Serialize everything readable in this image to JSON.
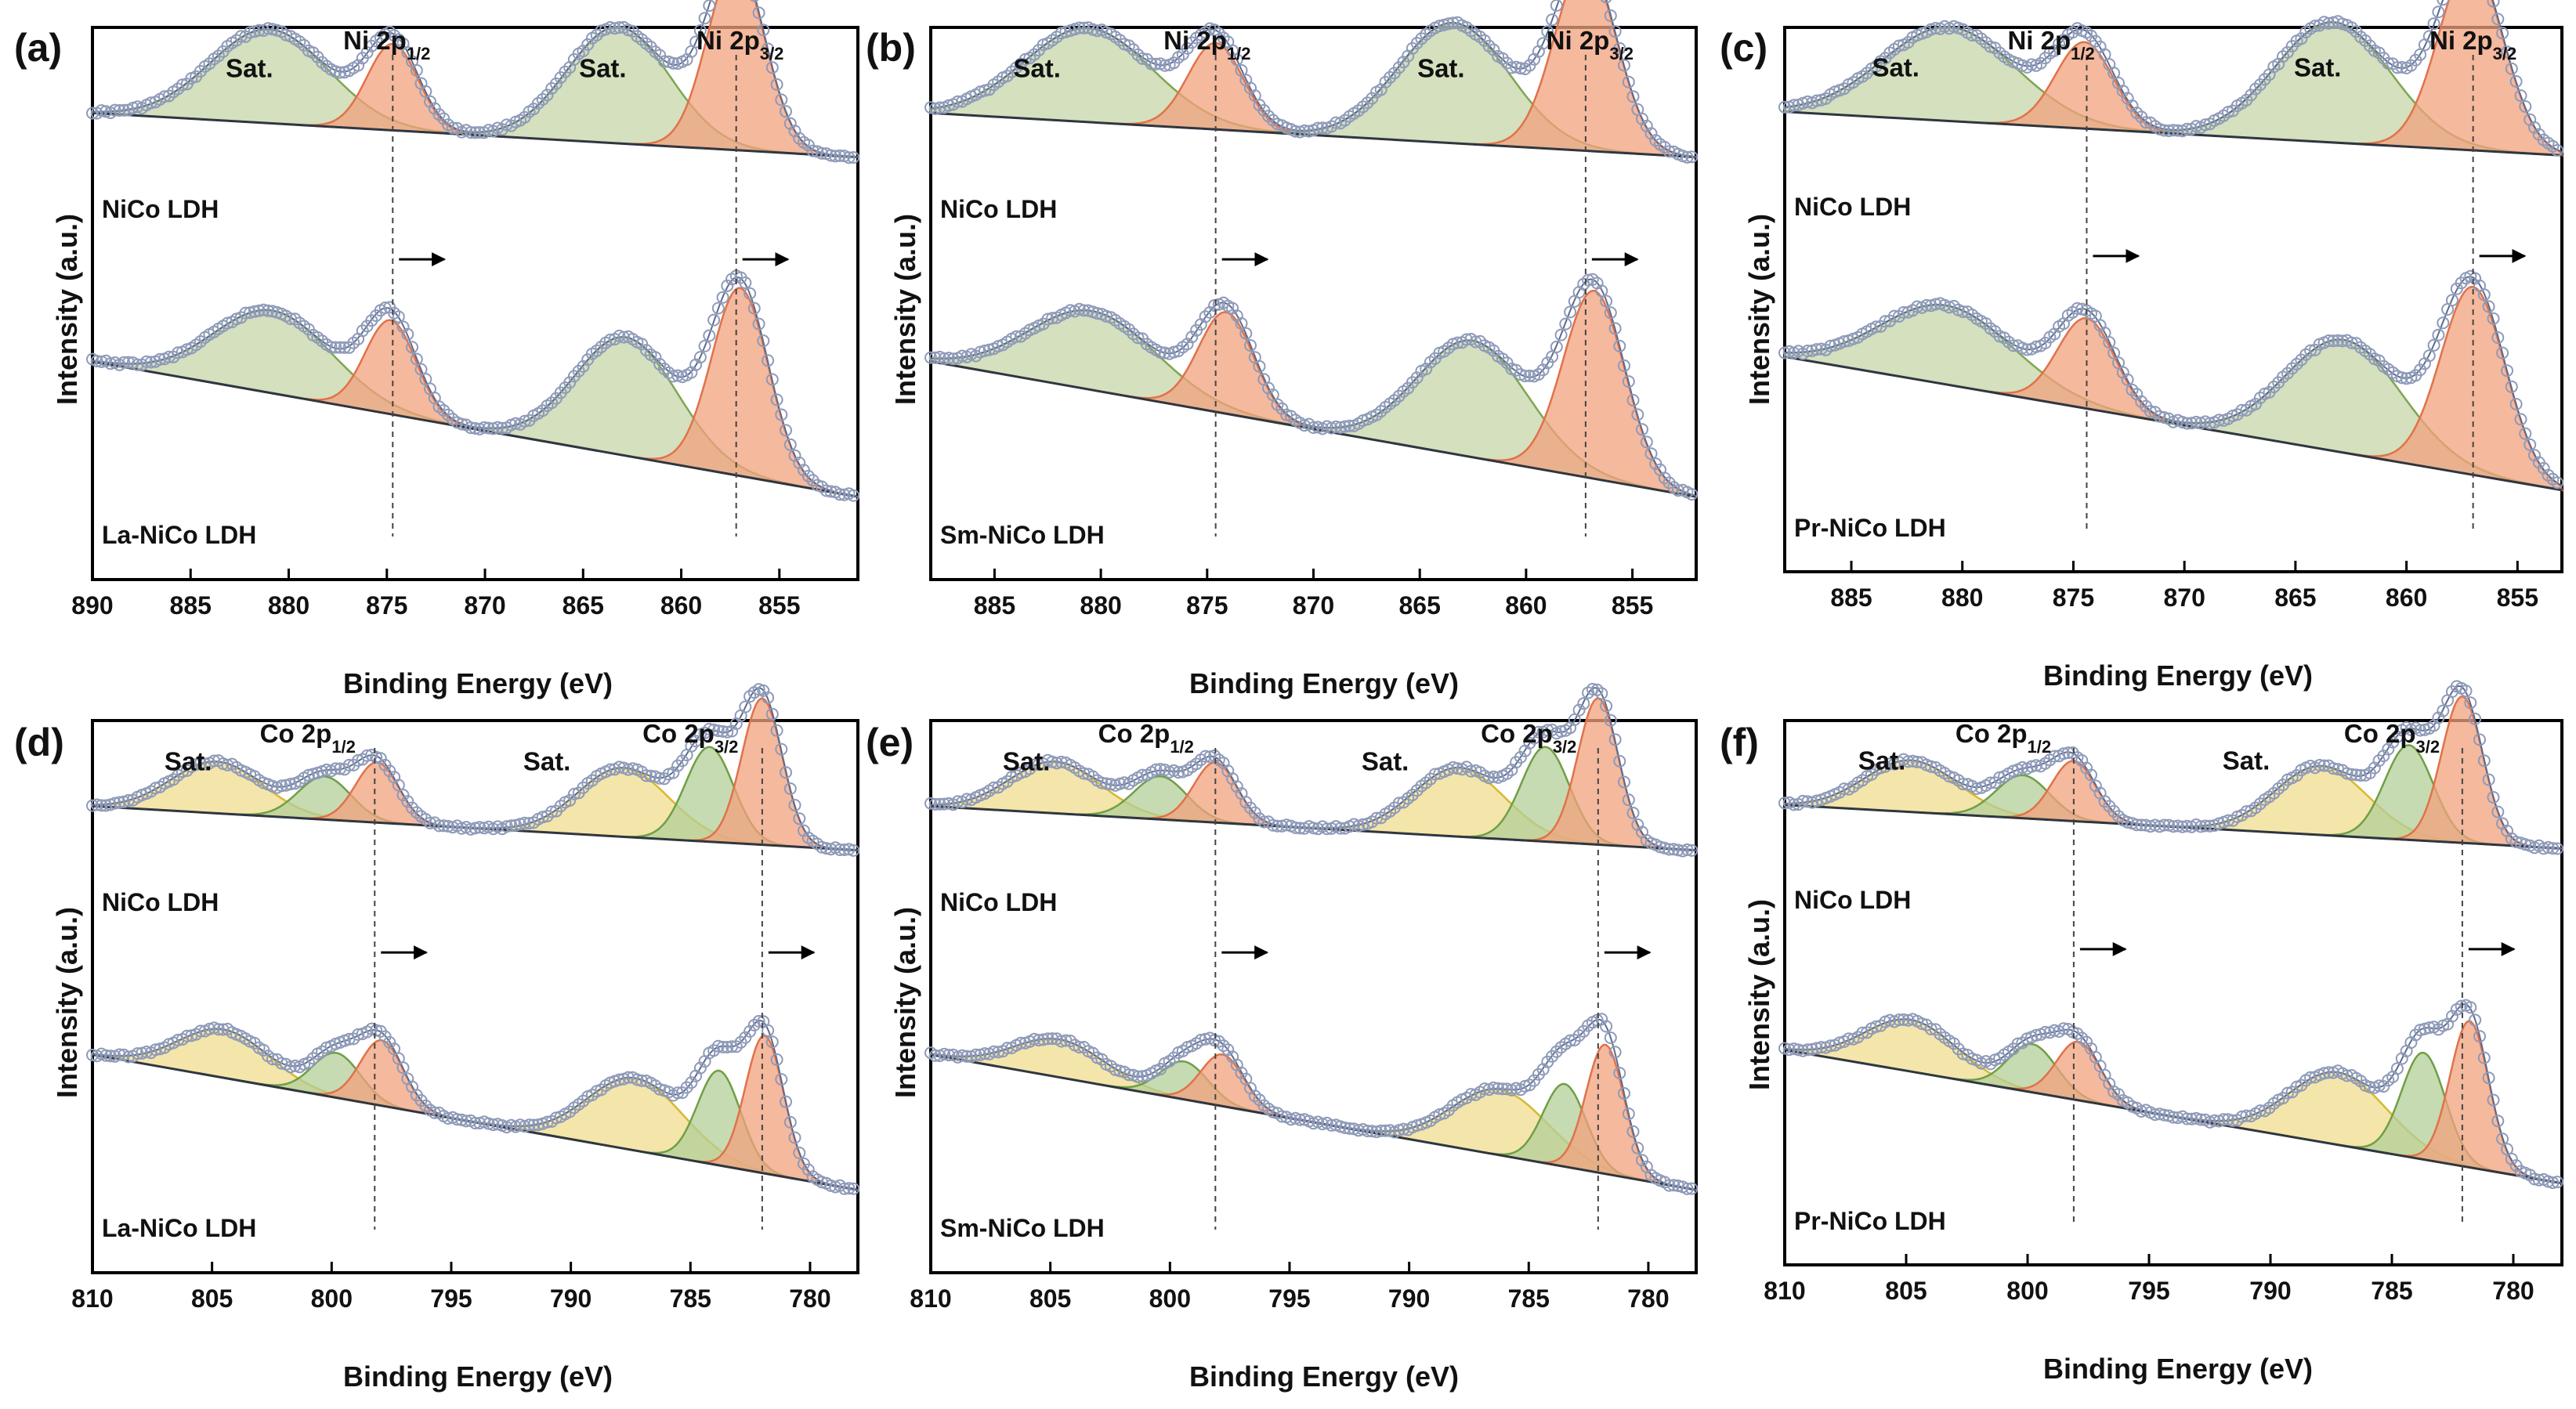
{
  "figure": {
    "panel_count": 6
  },
  "chart_data": [
    {
      "panel": "(a)",
      "type": "line",
      "element": "Ni 2p",
      "xlabel": "Binding Energy (eV)",
      "ylabel": "Intensity (a.u.)",
      "xlim": [
        890,
        851
      ],
      "xticks": [
        890,
        885,
        880,
        875,
        870,
        865,
        860,
        855
      ],
      "peak_labels": [
        {
          "label": "Sat.",
          "x": 882
        },
        {
          "label": "Ni 2p",
          "sub": "1/2",
          "x": 875
        },
        {
          "label": "Sat.",
          "x": 864
        },
        {
          "label": "Ni 2p",
          "sub": "3/2",
          "x": 857
        }
      ],
      "ref_lines": [
        874.7,
        857.2
      ],
      "shift_arrows": [
        874.7,
        857.2
      ],
      "series": [
        {
          "name": "NiCo LDH",
          "peaks": [
            {
              "center": 881.0,
              "height": 0.5,
              "width": 3.0,
              "kind": "sat"
            },
            {
              "center": 874.7,
              "height": 0.46,
              "width": 1.3,
              "kind": "main"
            },
            {
              "center": 863.2,
              "height": 0.62,
              "width": 2.6,
              "kind": "sat"
            },
            {
              "center": 857.2,
              "height": 1.0,
              "width": 1.45,
              "kind": "main"
            }
          ]
        },
        {
          "name": "La-NiCo LDH",
          "peaks": [
            {
              "center": 880.8,
              "height": 0.44,
              "width": 3.0,
              "kind": "sat"
            },
            {
              "center": 874.8,
              "height": 0.5,
              "width": 1.3,
              "kind": "main"
            },
            {
              "center": 862.8,
              "height": 0.63,
              "width": 2.6,
              "kind": "sat"
            },
            {
              "center": 857.0,
              "height": 1.0,
              "width": 1.45,
              "kind": "main"
            }
          ]
        }
      ]
    },
    {
      "panel": "(b)",
      "type": "line",
      "element": "Ni 2p",
      "xlabel": "Binding Energy (eV)",
      "ylabel": "Intensity (a.u.)",
      "xlim": [
        888,
        852
      ],
      "xticks": [
        885,
        880,
        875,
        870,
        865,
        860,
        855
      ],
      "peak_labels": [
        {
          "label": "Sat.",
          "x": 883
        },
        {
          "label": "Ni 2p",
          "sub": "1/2",
          "x": 875
        },
        {
          "label": "Sat.",
          "x": 864
        },
        {
          "label": "Ni 2p",
          "sub": "3/2",
          "x": 857
        }
      ],
      "ref_lines": [
        874.6,
        857.2
      ],
      "shift_arrows": [
        874.6,
        857.2
      ],
      "series": [
        {
          "name": "NiCo LDH",
          "peaks": [
            {
              "center": 880.6,
              "height": 0.5,
              "width": 3.0,
              "kind": "sat"
            },
            {
              "center": 874.6,
              "height": 0.46,
              "width": 1.3,
              "kind": "main"
            },
            {
              "center": 863.4,
              "height": 0.64,
              "width": 2.6,
              "kind": "sat"
            },
            {
              "center": 857.2,
              "height": 1.0,
              "width": 1.45,
              "kind": "main"
            }
          ]
        },
        {
          "name": "Sm-NiCo LDH",
          "peaks": [
            {
              "center": 880.4,
              "height": 0.42,
              "width": 3.0,
              "kind": "sat"
            },
            {
              "center": 874.1,
              "height": 0.54,
              "width": 1.3,
              "kind": "main"
            },
            {
              "center": 862.5,
              "height": 0.62,
              "width": 2.6,
              "kind": "sat"
            },
            {
              "center": 856.8,
              "height": 1.0,
              "width": 1.45,
              "kind": "main"
            }
          ]
        }
      ]
    },
    {
      "panel": "(c)",
      "type": "line",
      "element": "Ni 2p",
      "xlabel": "Binding Energy (eV)",
      "ylabel": "Intensity (a.u.)",
      "xlim": [
        888,
        853
      ],
      "xticks": [
        885,
        880,
        875,
        870,
        865,
        860,
        855
      ],
      "peak_labels": [
        {
          "label": "Sat.",
          "x": 883
        },
        {
          "label": "Ni 2p",
          "sub": "1/2",
          "x": 876
        },
        {
          "label": "Sat.",
          "x": 864
        },
        {
          "label": "Ni 2p",
          "sub": "3/2",
          "x": 857
        }
      ],
      "ref_lines": [
        874.4,
        857.0
      ],
      "shift_arrows": [
        874.4,
        857.0
      ],
      "series": [
        {
          "name": "NiCo LDH",
          "peaks": [
            {
              "center": 880.6,
              "height": 0.5,
              "width": 3.0,
              "kind": "sat"
            },
            {
              "center": 874.5,
              "height": 0.46,
              "width": 1.3,
              "kind": "main"
            },
            {
              "center": 863.3,
              "height": 0.64,
              "width": 2.6,
              "kind": "sat"
            },
            {
              "center": 857.1,
              "height": 1.0,
              "width": 1.45,
              "kind": "main"
            }
          ]
        },
        {
          "name": "Pr-NiCo LDH",
          "peaks": [
            {
              "center": 880.7,
              "height": 0.42,
              "width": 3.0,
              "kind": "sat"
            },
            {
              "center": 874.4,
              "height": 0.48,
              "width": 1.3,
              "kind": "main"
            },
            {
              "center": 862.8,
              "height": 0.6,
              "width": 2.6,
              "kind": "sat"
            },
            {
              "center": 857.0,
              "height": 1.0,
              "width": 1.45,
              "kind": "main"
            }
          ]
        }
      ]
    },
    {
      "panel": "(d)",
      "type": "line",
      "element": "Co 2p",
      "xlabel": "Binding Energy (eV)",
      "ylabel": "Intensity (a.u.)",
      "xlim": [
        810,
        778
      ],
      "xticks": [
        810,
        805,
        800,
        795,
        790,
        785,
        780
      ],
      "peak_labels": [
        {
          "label": "Sat.",
          "x": 806
        },
        {
          "label": "Co 2p",
          "sub": "1/2",
          "x": 801
        },
        {
          "label": "Sat.",
          "x": 791
        },
        {
          "label": "Co 2p",
          "sub": "3/2",
          "x": 785
        }
      ],
      "ref_lines": [
        798.2,
        782.0
      ],
      "shift_arrows": [
        798.2,
        782.0
      ],
      "series": [
        {
          "name": "NiCo LDH",
          "peaks": [
            {
              "center": 804.8,
              "height": 0.3,
              "width": 1.9,
              "kind": "sat"
            },
            {
              "center": 800.3,
              "height": 0.25,
              "width": 1.1,
              "kind": "sat2"
            },
            {
              "center": 798.1,
              "height": 0.35,
              "width": 0.9,
              "kind": "main"
            },
            {
              "center": 787.8,
              "height": 0.4,
              "width": 1.9,
              "kind": "sat"
            },
            {
              "center": 784.2,
              "height": 0.55,
              "width": 1.0,
              "kind": "sat2"
            },
            {
              "center": 782.0,
              "height": 0.85,
              "width": 0.85,
              "kind": "main"
            }
          ]
        },
        {
          "name": "La-NiCo LDH",
          "peaks": [
            {
              "center": 804.5,
              "height": 0.28,
              "width": 1.9,
              "kind": "sat"
            },
            {
              "center": 799.8,
              "height": 0.26,
              "width": 1.0,
              "kind": "sat2"
            },
            {
              "center": 797.9,
              "height": 0.38,
              "width": 0.9,
              "kind": "main"
            },
            {
              "center": 787.3,
              "height": 0.42,
              "width": 2.0,
              "kind": "sat"
            },
            {
              "center": 783.8,
              "height": 0.55,
              "width": 0.9,
              "kind": "sat2"
            },
            {
              "center": 781.9,
              "height": 0.8,
              "width": 0.8,
              "kind": "main"
            }
          ]
        }
      ]
    },
    {
      "panel": "(e)",
      "type": "line",
      "element": "Co 2p",
      "xlabel": "Binding Energy (eV)",
      "ylabel": "Intensity (a.u.)",
      "xlim": [
        810,
        778
      ],
      "xticks": [
        810,
        805,
        800,
        795,
        790,
        785,
        780
      ],
      "peak_labels": [
        {
          "label": "Sat.",
          "x": 806
        },
        {
          "label": "Co 2p",
          "sub": "1/2",
          "x": 801
        },
        {
          "label": "Sat.",
          "x": 791
        },
        {
          "label": "Co 2p",
          "sub": "3/2",
          "x": 785
        }
      ],
      "ref_lines": [
        798.1,
        782.1
      ],
      "shift_arrows": [
        798.1,
        782.1
      ],
      "series": [
        {
          "name": "NiCo LDH",
          "peaks": [
            {
              "center": 804.8,
              "height": 0.3,
              "width": 1.9,
              "kind": "sat"
            },
            {
              "center": 800.4,
              "height": 0.25,
              "width": 1.1,
              "kind": "sat2"
            },
            {
              "center": 798.1,
              "height": 0.35,
              "width": 0.9,
              "kind": "main"
            },
            {
              "center": 787.9,
              "height": 0.4,
              "width": 1.9,
              "kind": "sat"
            },
            {
              "center": 784.3,
              "height": 0.55,
              "width": 1.0,
              "kind": "sat2"
            },
            {
              "center": 782.1,
              "height": 0.85,
              "width": 0.85,
              "kind": "main"
            }
          ]
        },
        {
          "name": "Sm-NiCo LDH",
          "peaks": [
            {
              "center": 804.6,
              "height": 0.22,
              "width": 1.9,
              "kind": "sat"
            },
            {
              "center": 799.4,
              "height": 0.22,
              "width": 1.0,
              "kind": "sat2"
            },
            {
              "center": 797.8,
              "height": 0.3,
              "width": 0.9,
              "kind": "main"
            },
            {
              "center": 786.2,
              "height": 0.38,
              "width": 2.0,
              "kind": "sat"
            },
            {
              "center": 783.5,
              "height": 0.48,
              "width": 0.9,
              "kind": "sat2"
            },
            {
              "center": 781.8,
              "height": 0.75,
              "width": 0.8,
              "kind": "main"
            }
          ]
        }
      ]
    },
    {
      "panel": "(f)",
      "type": "line",
      "element": "Co 2p",
      "xlabel": "Binding Energy (eV)",
      "ylabel": "Intensity (a.u.)",
      "xlim": [
        810,
        778
      ],
      "xticks": [
        810,
        805,
        800,
        795,
        790,
        785,
        780
      ],
      "peak_labels": [
        {
          "label": "Sat.",
          "x": 806
        },
        {
          "label": "Co 2p",
          "sub": "1/2",
          "x": 801
        },
        {
          "label": "Sat.",
          "x": 791
        },
        {
          "label": "Co 2p",
          "sub": "3/2",
          "x": 785
        }
      ],
      "ref_lines": [
        798.1,
        782.1
      ],
      "shift_arrows": [
        798.1,
        782.1
      ],
      "series": [
        {
          "name": "NiCo LDH",
          "peaks": [
            {
              "center": 804.8,
              "height": 0.3,
              "width": 1.9,
              "kind": "sat"
            },
            {
              "center": 800.2,
              "height": 0.25,
              "width": 1.1,
              "kind": "sat2"
            },
            {
              "center": 798.1,
              "height": 0.35,
              "width": 0.9,
              "kind": "main"
            },
            {
              "center": 787.9,
              "height": 0.4,
              "width": 1.9,
              "kind": "sat"
            },
            {
              "center": 784.3,
              "height": 0.55,
              "width": 1.0,
              "kind": "sat2"
            },
            {
              "center": 782.1,
              "height": 0.85,
              "width": 0.85,
              "kind": "main"
            }
          ]
        },
        {
          "name": "Pr-NiCo LDH",
          "peaks": [
            {
              "center": 804.8,
              "height": 0.3,
              "width": 1.9,
              "kind": "sat"
            },
            {
              "center": 799.8,
              "height": 0.28,
              "width": 1.0,
              "kind": "sat2"
            },
            {
              "center": 797.9,
              "height": 0.34,
              "width": 0.9,
              "kind": "main"
            },
            {
              "center": 787.2,
              "height": 0.42,
              "width": 2.0,
              "kind": "sat"
            },
            {
              "center": 783.7,
              "height": 0.62,
              "width": 0.9,
              "kind": "sat2"
            },
            {
              "center": 781.8,
              "height": 0.85,
              "width": 0.8,
              "kind": "main"
            }
          ]
        }
      ]
    }
  ],
  "colors": {
    "frame": "#000000",
    "background_line": "#2f3640",
    "sat_fill": "#c5d6a8",
    "sat_stroke": "#7fa650",
    "co_sat_fill": "#f0dc8e",
    "co_sat_stroke": "#d7b930",
    "sat2_fill": "#b3cf98",
    "sat2_stroke": "#6f9f46",
    "main_fill": "#f2a27d",
    "main_stroke": "#e0724a",
    "marker": "#8e9ab8",
    "envelope": "#5b6a8e"
  }
}
